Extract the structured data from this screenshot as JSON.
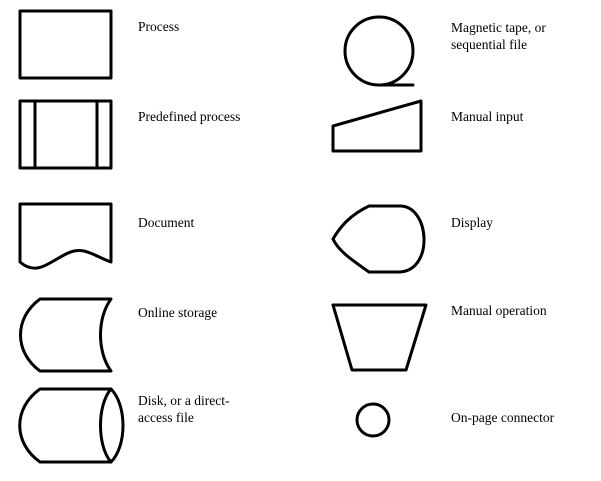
{
  "symbols": {
    "process": {
      "label": "Process",
      "icon": "rectangle"
    },
    "predefined_process": {
      "label": "Predefined process",
      "icon": "rectangle-with-side-bars"
    },
    "document": {
      "label": "Document",
      "icon": "wavy-bottom-rectangle"
    },
    "online_storage": {
      "label": "Online storage",
      "icon": "curved-sides-shape"
    },
    "disk": {
      "label": "Disk, or a direct-\naccess file",
      "icon": "cylinder"
    },
    "magnetic_tape": {
      "label": "Magnetic tape, or\nsequential file",
      "icon": "circle-with-tail"
    },
    "manual_input": {
      "label": "Manual input",
      "icon": "slanted-top-quadrilateral"
    },
    "display": {
      "label": "Display",
      "icon": "display-shape"
    },
    "manual_operation": {
      "label": "Manual operation",
      "icon": "inverted-trapezoid"
    },
    "connector": {
      "label": "On-page connector",
      "icon": "small-circle"
    }
  },
  "colors": {
    "stroke": "#000000",
    "background": "#ffffff"
  }
}
